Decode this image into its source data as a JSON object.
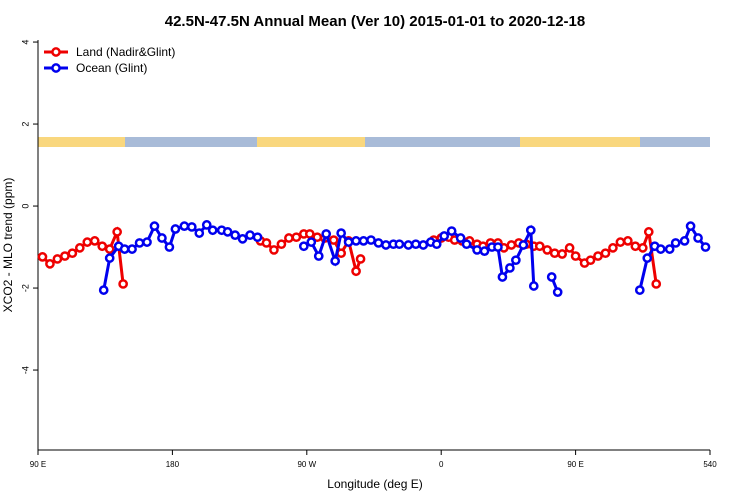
{
  "chart_data": {
    "type": "line",
    "title": "42.5N-47.5N Annual Mean (Ver 10)   2015-01-01 to 2020-12-18",
    "x_label": "Longitude (deg E)",
    "y_label": "XCO2 - MLO trend (ppm)",
    "xlim": [
      90,
      540
    ],
    "ylim": [
      -5.95,
      4.05
    ],
    "xticks": [
      {
        "value": 90,
        "label": "90 E"
      },
      180,
      {
        "value": 270,
        "label": "90 W"
      },
      {
        "value": 360,
        "label": "0"
      },
      {
        "value": 450,
        "label": "90 E"
      },
      540
    ],
    "yticks": [
      -4,
      -2,
      0,
      2,
      4
    ],
    "legend": "top-left",
    "series": [
      {
        "name": "Land (Nadir&Glint)",
        "color": "#ee0000",
        "x": [
          93,
          98,
          103,
          108,
          113,
          118,
          123,
          128,
          133,
          138,
          143,
          147,
          null,
          239,
          243,
          248,
          253,
          258,
          263,
          268,
          272,
          277,
          282,
          288,
          293,
          298,
          303,
          306,
          null,
          355,
          360,
          365,
          369,
          374,
          379,
          384,
          388,
          393,
          398,
          402,
          407,
          412,
          417,
          422,
          426,
          431,
          436,
          441,
          446,
          450,
          456,
          460,
          465,
          470,
          475,
          480,
          485,
          490,
          495,
          499,
          504
        ],
        "values": [
          -1.24,
          -1.41,
          -1.29,
          -1.22,
          -1.15,
          -1.02,
          -0.88,
          -0.85,
          -0.98,
          -1.05,
          -0.63,
          -1.9,
          null,
          -0.85,
          -0.9,
          -1.07,
          -0.93,
          -0.78,
          -0.76,
          -0.68,
          -0.68,
          -0.76,
          -0.78,
          -0.83,
          -1.15,
          -0.85,
          -1.59,
          -1.29,
          null,
          -0.83,
          -0.78,
          -0.76,
          -0.83,
          -0.85,
          -0.85,
          -0.93,
          -0.98,
          -0.9,
          -0.9,
          -1.02,
          -0.95,
          -0.9,
          -0.93,
          -0.98,
          -0.98,
          -1.07,
          -1.15,
          -1.17,
          -1.02,
          -1.22,
          -1.39,
          -1.32,
          -1.22,
          -1.15,
          -1.02,
          -0.88,
          -0.85,
          -0.98,
          -1.02,
          -0.63,
          -1.9
        ]
      },
      {
        "name": "Ocean (Glint)",
        "color": "#0000ee",
        "x": [
          134,
          138,
          144,
          148,
          153,
          158,
          163,
          168,
          173,
          178,
          182,
          188,
          193,
          198,
          203,
          207,
          213,
          217,
          222,
          227,
          232,
          237,
          null,
          268,
          273,
          278,
          283,
          289,
          293,
          298,
          303,
          308,
          313,
          318,
          323,
          328,
          332,
          338,
          343,
          348,
          353,
          357,
          362,
          367,
          373,
          377,
          384,
          389,
          394,
          398,
          401,
          406,
          410,
          415,
          420,
          422,
          null,
          434,
          438,
          null,
          493,
          498,
          503,
          507,
          513,
          517,
          523,
          527,
          532,
          537
        ],
        "values": [
          -2.05,
          -1.27,
          -0.98,
          -1.05,
          -1.05,
          -0.9,
          -0.88,
          -0.49,
          -0.78,
          -1.0,
          -0.56,
          -0.49,
          -0.51,
          -0.66,
          -0.46,
          -0.59,
          -0.59,
          -0.63,
          -0.71,
          -0.8,
          -0.71,
          -0.76,
          null,
          -0.98,
          -0.88,
          -1.22,
          -0.68,
          -1.34,
          -0.66,
          -0.88,
          -0.85,
          -0.85,
          -0.83,
          -0.9,
          -0.95,
          -0.93,
          -0.93,
          -0.95,
          -0.93,
          -0.95,
          -0.88,
          -0.93,
          -0.73,
          -0.61,
          -0.78,
          -0.93,
          -1.07,
          -1.1,
          -1.0,
          -1.0,
          -1.73,
          -1.51,
          -1.32,
          -0.95,
          -0.59,
          -1.95,
          null,
          -1.73,
          -2.1,
          null,
          -2.05,
          -1.27,
          -0.98,
          -1.05,
          -1.05,
          -0.9,
          -0.85,
          -0.49,
          -0.78,
          -1.0
        ]
      }
    ]
  }
}
